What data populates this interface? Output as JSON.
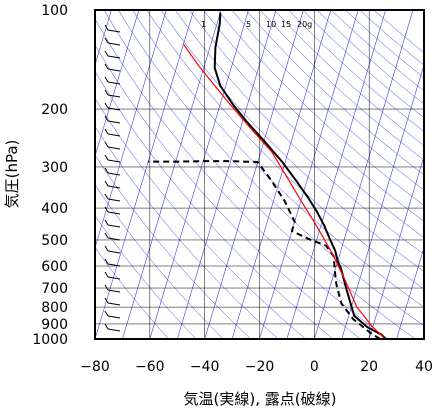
{
  "chart_data": {
    "type": "line",
    "title": "",
    "xlabel": "気温(実線), 露点(破線)",
    "ylabel": "気圧(hPa)",
    "xlim": [
      -80,
      40
    ],
    "ylim": [
      1000,
      100
    ],
    "yscale": "log",
    "grid": true,
    "x_ticks": [
      "−80",
      "−60",
      "−40",
      "−20",
      "0",
      "20",
      "40"
    ],
    "x_tick_values": [
      -80,
      -60,
      -40,
      -20,
      0,
      20,
      40
    ],
    "y_ticks": [
      "100",
      "200",
      "300",
      "400",
      "500",
      "600",
      "700",
      "800",
      "900",
      "1000"
    ],
    "y_tick_values": [
      100,
      200,
      300,
      400,
      500,
      600,
      700,
      800,
      900,
      1000
    ],
    "mixing_ratio_labels": [
      "1",
      "5",
      "10",
      "15",
      "20g"
    ],
    "colors": {
      "temperature": "#000000",
      "dewpoint": "#000000",
      "parcel": "#ff0000",
      "isotherms": "#4040e0",
      "dry_adiabats": "#4040e0",
      "grid": "#000000"
    },
    "series": [
      {
        "name": "気温",
        "style": "solid",
        "points": [
          [
            26,
            1000
          ],
          [
            24,
            970
          ],
          [
            18,
            920
          ],
          [
            12,
            850
          ],
          [
            6,
            700
          ],
          [
            2,
            610
          ],
          [
            0,
            580
          ],
          [
            -2,
            540
          ],
          [
            -5,
            500
          ],
          [
            -9,
            450
          ],
          [
            -13,
            410
          ],
          [
            -18,
            370
          ],
          [
            -24,
            330
          ],
          [
            -31,
            290
          ],
          [
            -40,
            250
          ],
          [
            -48,
            220
          ],
          [
            -55,
            195
          ],
          [
            -62,
            170
          ],
          [
            -66,
            150
          ],
          [
            -68,
            130
          ],
          [
            -69,
            110
          ],
          [
            -70,
            102
          ]
        ]
      },
      {
        "name": "露点",
        "style": "dashed",
        "points": [
          [
            24,
            1000
          ],
          [
            20,
            960
          ],
          [
            12,
            870
          ],
          [
            6,
            780
          ],
          [
            2,
            680
          ],
          [
            0,
            620
          ],
          [
            -2,
            560
          ],
          [
            -6,
            520
          ],
          [
            -12,
            500
          ],
          [
            -20,
            470
          ],
          [
            -20,
            440
          ],
          [
            -26,
            380
          ],
          [
            -33,
            330
          ],
          [
            -40,
            290
          ],
          [
            -50,
            288
          ],
          [
            -60,
            288
          ],
          [
            -68,
            289
          ],
          [
            -80,
            289
          ]
        ]
      },
      {
        "name": "",
        "style": "solid",
        "points": [
          [
            26,
            1000
          ],
          [
            20,
            920
          ],
          [
            12,
            800
          ],
          [
            4,
            650
          ],
          [
            -2,
            560
          ],
          [
            -8,
            490
          ],
          [
            -14,
            430
          ],
          [
            -20,
            380
          ],
          [
            -28,
            320
          ],
          [
            -36,
            270
          ],
          [
            -46,
            230
          ],
          [
            -56,
            195
          ],
          [
            -64,
            170
          ],
          [
            -72,
            148
          ],
          [
            -80,
            127
          ]
        ]
      }
    ]
  }
}
